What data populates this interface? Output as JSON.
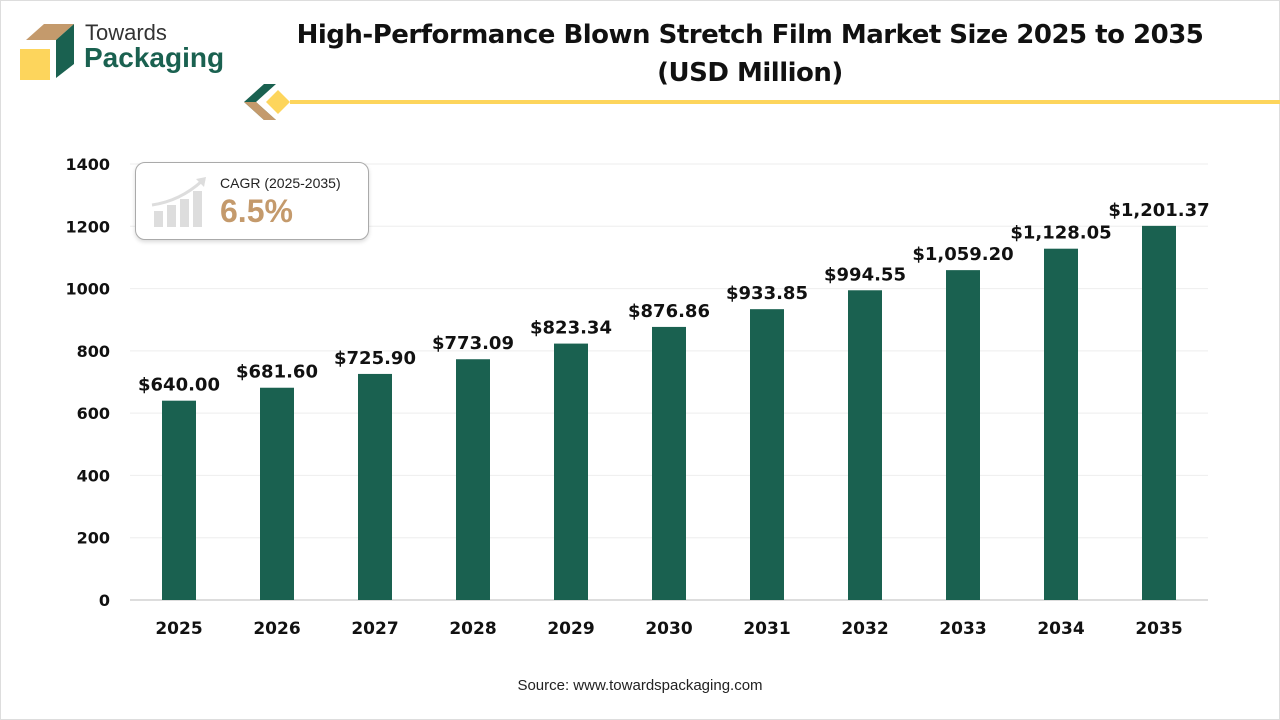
{
  "logo": {
    "line1": "Towards",
    "line2": "Packaging"
  },
  "title_line1": "High-Performance Blown Stretch Film Market Size 2025 to 2035",
  "title_line2": "(USD Million)",
  "cagr": {
    "label": "CAGR (2025-2035)",
    "value": "6.5%"
  },
  "source": "Source: www.towardspackaging.com",
  "colors": {
    "bar": "#1a6150",
    "accent": "#fdd55c",
    "brown": "#c49a6c"
  },
  "chart_data": {
    "type": "bar",
    "title": "High-Performance Blown Stretch Film Market Size 2025 to 2035 (USD Million)",
    "categories": [
      "2025",
      "2026",
      "2027",
      "2028",
      "2029",
      "2030",
      "2031",
      "2032",
      "2033",
      "2034",
      "2035"
    ],
    "values": [
      640.0,
      681.6,
      725.9,
      773.09,
      823.34,
      876.86,
      933.85,
      994.55,
      1059.2,
      1128.05,
      1201.37
    ],
    "data_labels": [
      "$640.00",
      "$681.60",
      "$725.90",
      "$773.09",
      "$823.34",
      "$876.86",
      "$933.85",
      "$994.55",
      "$1,059.20",
      "$1,128.05",
      "$1,201.37"
    ],
    "yticks": [
      0,
      200,
      400,
      600,
      800,
      1000,
      1200,
      1400
    ],
    "ylim": [
      0,
      1400
    ],
    "grid": true,
    "xlabel": "",
    "ylabel": ""
  }
}
